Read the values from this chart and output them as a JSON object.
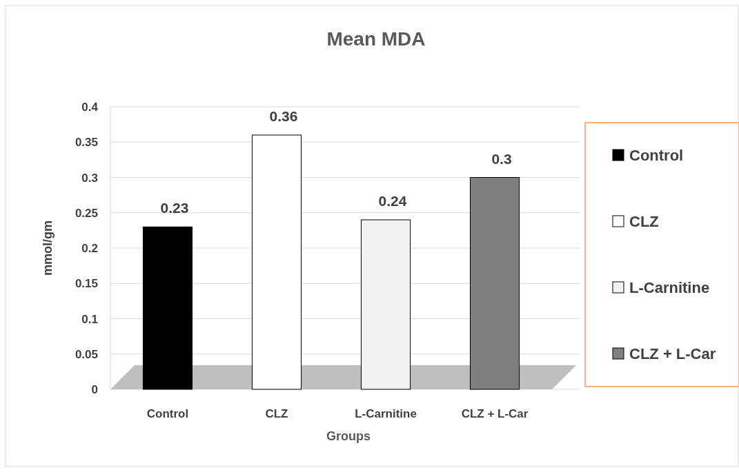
{
  "chart_data": {
    "type": "bar",
    "title": "Mean MDA",
    "xlabel": "Groups",
    "ylabel": "mmol/gm",
    "categories": [
      "Control",
      "CLZ",
      "L-Carnitine",
      "CLZ + L-Car"
    ],
    "series": [
      {
        "name": "Control",
        "color": "#000000",
        "values": [
          0.23,
          null,
          null,
          null
        ]
      },
      {
        "name": "CLZ",
        "color": "#ffffff",
        "values": [
          null,
          0.36,
          null,
          null
        ]
      },
      {
        "name": "L-Carnitine",
        "color": "#f2f2f2",
        "values": [
          null,
          null,
          0.24,
          null
        ]
      },
      {
        "name": "CLZ + L-Car",
        "color": "#7f7f7f",
        "values": [
          null,
          null,
          null,
          0.3
        ]
      }
    ],
    "ylim": [
      0,
      0.4
    ],
    "yticks": [
      0,
      0.05,
      0.1,
      0.15,
      0.2,
      0.25,
      0.3,
      0.35,
      0.4
    ],
    "grid": "y",
    "legend": "right",
    "data_labels": true
  }
}
